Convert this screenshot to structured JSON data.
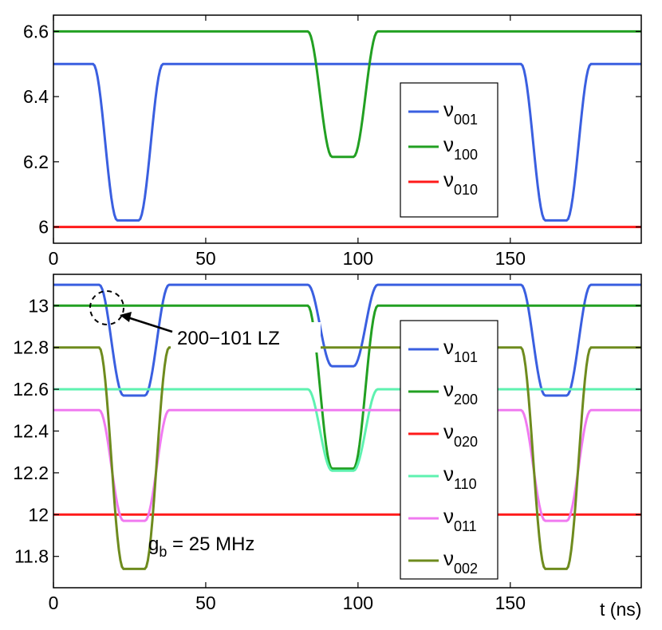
{
  "chart_data": [
    {
      "type": "line",
      "id": "top",
      "xlim": [
        0,
        193
      ],
      "ylim": [
        5.95,
        6.65
      ],
      "xticks": [
        0,
        50,
        100,
        150
      ],
      "yticks": [
        6,
        6.2,
        6.4,
        6.6
      ],
      "xtick_labels": [
        "0",
        "50",
        "100",
        "150"
      ],
      "ytick_labels": [
        "6",
        "6.2",
        "6.4",
        "6.6"
      ],
      "xlabel": "",
      "ylabel": "",
      "grid": false,
      "legend_position": "right-middle",
      "series": [
        {
          "name": "ν001",
          "label_main": "ν",
          "label_sub": "001",
          "color": "#3a5fe0",
          "base": 6.5,
          "dips": [
            [
              24.5,
              6.02
            ],
            [
              165,
              6.02
            ]
          ]
        },
        {
          "name": "ν100",
          "label_main": "ν",
          "label_sub": "100",
          "color": "#22a022",
          "base": 6.6,
          "dips": [
            [
              95,
              6.215
            ]
          ]
        },
        {
          "name": "ν010",
          "label_main": "ν",
          "label_sub": "010",
          "color": "#ff1a1a",
          "base": 6.0,
          "dips": []
        }
      ]
    },
    {
      "type": "line",
      "id": "bottom",
      "xlim": [
        0,
        193
      ],
      "ylim": [
        11.65,
        13.15
      ],
      "xticks": [
        0,
        50,
        100,
        150
      ],
      "yticks": [
        11.8,
        12,
        12.2,
        12.4,
        12.6,
        12.8,
        13
      ],
      "xtick_labels": [
        "0",
        "50",
        "100",
        "150"
      ],
      "ytick_labels": [
        "11.8",
        "12",
        "12.2",
        "12.4",
        "12.6",
        "12.8",
        "13"
      ],
      "xlabel": "t (ns)",
      "ylabel": "",
      "grid": false,
      "legend_position": "right",
      "annotations": {
        "lz_label": "200−101 LZ",
        "gb_main": "g",
        "gb_sub": "b",
        "gb_rest": " = 25 MHz"
      },
      "series": [
        {
          "name": "ν101",
          "label_main": "ν",
          "label_sub": "101",
          "color": "#3a5fe0",
          "base": 13.1,
          "dips": [
            [
              26.5,
              12.57
            ],
            [
              95,
              12.71
            ],
            [
              165,
              12.57
            ]
          ]
        },
        {
          "name": "ν200",
          "label_main": "ν",
          "label_sub": "200",
          "color": "#22a022",
          "base": 13.0,
          "dips": [
            [
              95,
              12.22
            ]
          ]
        },
        {
          "name": "ν020",
          "label_main": "ν",
          "label_sub": "020",
          "color": "#ff1a1a",
          "base": 12.0,
          "dips": []
        },
        {
          "name": "ν110",
          "label_main": "ν",
          "label_sub": "110",
          "color": "#5ef2b0",
          "base": 12.6,
          "dips": [
            [
              95,
              12.21
            ]
          ]
        },
        {
          "name": "ν011",
          "label_main": "ν",
          "label_sub": "011",
          "color": "#f07af0",
          "base": 12.5,
          "dips": [
            [
              26.5,
              11.97
            ],
            [
              165,
              11.97
            ]
          ]
        },
        {
          "name": "ν002",
          "label_main": "ν",
          "label_sub": "002",
          "color": "#6e8b1e",
          "base": 12.8,
          "dips": [
            [
              26.5,
              11.74
            ],
            [
              165,
              11.74
            ]
          ]
        }
      ]
    }
  ]
}
